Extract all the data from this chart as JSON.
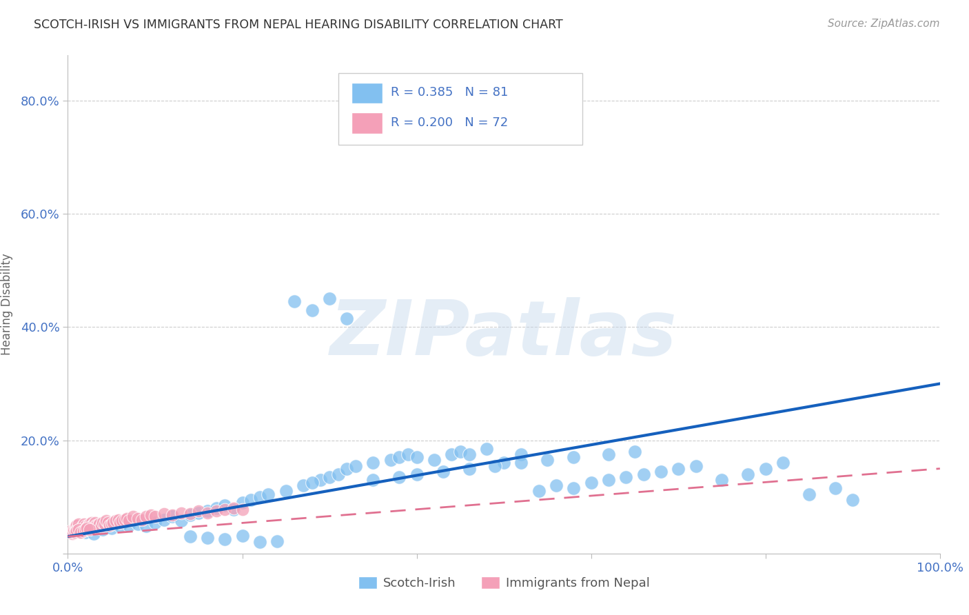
{
  "title": "SCOTCH-IRISH VS IMMIGRANTS FROM NEPAL HEARING DISABILITY CORRELATION CHART",
  "source": "Source: ZipAtlas.com",
  "ylabel": "Hearing Disability",
  "xlim": [
    0.0,
    1.0
  ],
  "ylim": [
    0.0,
    0.88
  ],
  "x_tick_labels": [
    "0.0%",
    "",
    "",
    "",
    "",
    "100.0%"
  ],
  "y_tick_labels": [
    "",
    "20.0%",
    "40.0%",
    "60.0%",
    "80.0%"
  ],
  "scotch_irish_color": "#82C0F0",
  "nepal_color": "#F4A0B8",
  "scotch_irish_line_color": "#1560BD",
  "nepal_line_color": "#E07090",
  "background_color": "#FFFFFF",
  "grid_color": "#CCCCCC",
  "title_color": "#333333",
  "axis_label_color": "#666666",
  "tick_color": "#4472C4",
  "watermark": "ZIPatlas",
  "si_x": [
    0.01,
    0.02,
    0.03,
    0.04,
    0.05,
    0.06,
    0.07,
    0.08,
    0.09,
    0.1,
    0.11,
    0.12,
    0.13,
    0.14,
    0.15,
    0.16,
    0.17,
    0.18,
    0.19,
    0.2,
    0.21,
    0.22,
    0.23,
    0.25,
    0.27,
    0.28,
    0.29,
    0.3,
    0.31,
    0.32,
    0.33,
    0.35,
    0.37,
    0.38,
    0.39,
    0.4,
    0.42,
    0.44,
    0.45,
    0.46,
    0.48,
    0.5,
    0.52,
    0.54,
    0.56,
    0.58,
    0.6,
    0.62,
    0.64,
    0.66,
    0.68,
    0.7,
    0.72,
    0.75,
    0.78,
    0.8,
    0.82,
    0.85,
    0.88,
    0.9,
    0.14,
    0.16,
    0.18,
    0.2,
    0.22,
    0.24,
    0.26,
    0.28,
    0.3,
    0.32,
    0.35,
    0.38,
    0.4,
    0.43,
    0.46,
    0.49,
    0.52,
    0.55,
    0.58,
    0.62,
    0.65
  ],
  "si_y": [
    0.04,
    0.038,
    0.035,
    0.042,
    0.045,
    0.048,
    0.05,
    0.052,
    0.048,
    0.055,
    0.06,
    0.065,
    0.058,
    0.068,
    0.072,
    0.075,
    0.08,
    0.085,
    0.078,
    0.09,
    0.095,
    0.1,
    0.105,
    0.11,
    0.12,
    0.43,
    0.13,
    0.135,
    0.14,
    0.15,
    0.155,
    0.16,
    0.165,
    0.17,
    0.175,
    0.17,
    0.165,
    0.175,
    0.18,
    0.175,
    0.185,
    0.16,
    0.175,
    0.11,
    0.12,
    0.115,
    0.125,
    0.13,
    0.135,
    0.14,
    0.145,
    0.15,
    0.155,
    0.13,
    0.14,
    0.15,
    0.16,
    0.105,
    0.115,
    0.095,
    0.03,
    0.028,
    0.025,
    0.032,
    0.02,
    0.022,
    0.445,
    0.125,
    0.45,
    0.415,
    0.13,
    0.135,
    0.14,
    0.145,
    0.15,
    0.155,
    0.16,
    0.165,
    0.17,
    0.175,
    0.18
  ],
  "np_x": [
    0.003,
    0.005,
    0.006,
    0.007,
    0.008,
    0.009,
    0.01,
    0.011,
    0.012,
    0.013,
    0.014,
    0.015,
    0.016,
    0.017,
    0.018,
    0.019,
    0.02,
    0.021,
    0.022,
    0.023,
    0.024,
    0.025,
    0.026,
    0.027,
    0.028,
    0.029,
    0.03,
    0.031,
    0.032,
    0.033,
    0.034,
    0.035,
    0.036,
    0.038,
    0.04,
    0.042,
    0.044,
    0.046,
    0.048,
    0.05,
    0.052,
    0.055,
    0.058,
    0.06,
    0.062,
    0.065,
    0.068,
    0.07,
    0.075,
    0.08,
    0.085,
    0.09,
    0.095,
    0.1,
    0.11,
    0.12,
    0.13,
    0.14,
    0.15,
    0.16,
    0.17,
    0.18,
    0.19,
    0.2,
    0.008,
    0.01,
    0.012,
    0.015,
    0.018,
    0.02,
    0.022,
    0.025
  ],
  "np_y": [
    0.04,
    0.035,
    0.038,
    0.042,
    0.045,
    0.048,
    0.05,
    0.045,
    0.052,
    0.042,
    0.038,
    0.04,
    0.045,
    0.048,
    0.05,
    0.052,
    0.048,
    0.045,
    0.042,
    0.05,
    0.048,
    0.052,
    0.045,
    0.055,
    0.05,
    0.048,
    0.052,
    0.055,
    0.05,
    0.048,
    0.045,
    0.05,
    0.052,
    0.048,
    0.055,
    0.052,
    0.058,
    0.055,
    0.05,
    0.052,
    0.055,
    0.058,
    0.06,
    0.055,
    0.058,
    0.06,
    0.062,
    0.058,
    0.065,
    0.062,
    0.06,
    0.065,
    0.068,
    0.065,
    0.07,
    0.068,
    0.072,
    0.07,
    0.075,
    0.072,
    0.075,
    0.078,
    0.08,
    0.078,
    0.038,
    0.04,
    0.042,
    0.038,
    0.04,
    0.042,
    0.045,
    0.042
  ],
  "si_line_x": [
    0.0,
    1.0
  ],
  "si_line_y": [
    0.03,
    0.3
  ],
  "np_line_x": [
    0.0,
    1.0
  ],
  "np_line_y": [
    0.03,
    0.15
  ]
}
